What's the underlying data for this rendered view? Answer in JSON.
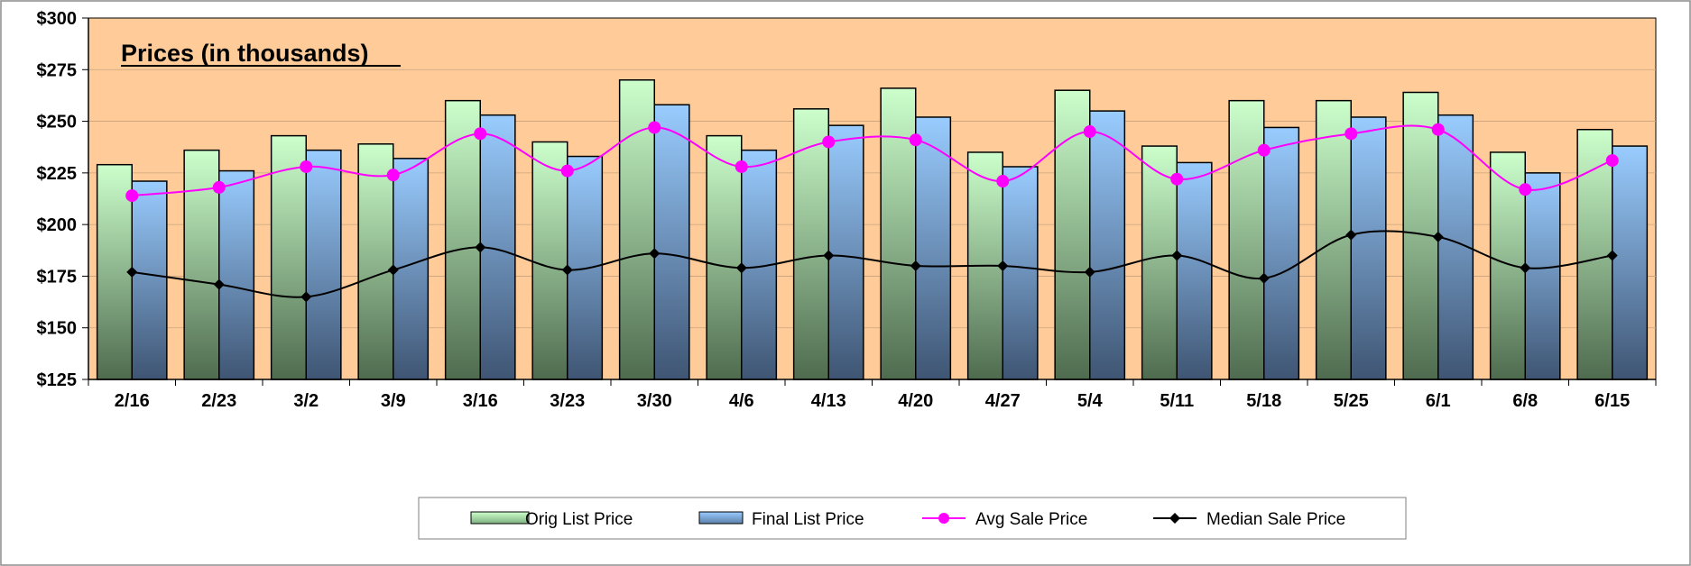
{
  "chart_data": {
    "type": "bar",
    "title": "Prices (in thousands)",
    "categories": [
      "2/16",
      "2/23",
      "3/2",
      "3/9",
      "3/16",
      "3/23",
      "3/30",
      "4/6",
      "4/13",
      "4/20",
      "4/27",
      "5/4",
      "5/11",
      "5/18",
      "5/25",
      "6/1",
      "6/8",
      "6/15"
    ],
    "y_ticks": [
      "$125",
      "$150",
      "$175",
      "$200",
      "$225",
      "$250",
      "$275",
      "$300"
    ],
    "ylim": [
      125,
      300
    ],
    "grid": true,
    "legend_position": "bottom",
    "plot_background": "#FFCC99",
    "series": [
      {
        "name": "Orig List Price",
        "kind": "bar",
        "color_top": "#CCFFCC",
        "color_bottom": "#4F6B4F",
        "values": [
          229,
          236,
          243,
          239,
          260,
          240,
          270,
          243,
          256,
          266,
          235,
          265,
          238,
          260,
          260,
          264,
          235,
          246
        ]
      },
      {
        "name": "Final List Price",
        "kind": "bar",
        "color_top": "#99CCFF",
        "color_bottom": "#3F5573",
        "values": [
          221,
          226,
          236,
          232,
          253,
          233,
          258,
          236,
          248,
          252,
          228,
          255,
          230,
          247,
          252,
          253,
          225,
          238
        ]
      },
      {
        "name": "Avg Sale Price",
        "kind": "line",
        "color": "#FF00FF",
        "marker": "circle",
        "values": [
          214,
          218,
          228,
          224,
          244,
          226,
          247,
          228,
          240,
          241,
          221,
          245,
          222,
          236,
          244,
          246,
          217,
          231
        ]
      },
      {
        "name": "Median Sale Price",
        "kind": "line",
        "color": "#000000",
        "marker": "diamond",
        "values": [
          177,
          171,
          165,
          178,
          189,
          178,
          186,
          179,
          185,
          180,
          180,
          177,
          185,
          174,
          195,
          194,
          179,
          185
        ]
      }
    ]
  }
}
